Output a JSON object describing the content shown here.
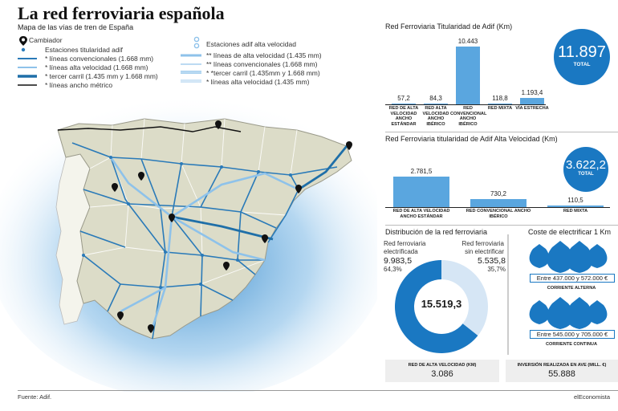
{
  "header": {
    "title": "La red ferroviaria española",
    "subtitle": "Mapa de las vías de tren de España"
  },
  "legend": {
    "left": [
      {
        "label": "Cambiador",
        "color": "#111111",
        "type": "pin"
      },
      {
        "label": "Estaciones titularidad adif",
        "color": "#2a7ab8",
        "type": "dot"
      },
      {
        "label": "* líneas convencionales  (1.668 mm)",
        "color": "#2a7ab8",
        "type": "line-thin"
      },
      {
        "label": "* líneas alta velocidad (1.668 mm)",
        "color": "#8ec2ea",
        "type": "line-thin"
      },
      {
        "label": "* tercer carril (1.435 mm y 1.668 mm)",
        "color": "#1f6fa8",
        "type": "line-thick"
      },
      {
        "label": "* líneas ancho métrico",
        "color": "#111111",
        "type": "line-thin"
      }
    ],
    "right": [
      {
        "label": "Estaciones adif alta velocidad",
        "color": "#8ec2ea",
        "type": "circle"
      },
      {
        "label": "** líneas de alta velocidad (1.435 mm)",
        "color": "#8ec2ea",
        "type": "line-thick"
      },
      {
        "label": "** líneas convencionales (1.668 mm)",
        "color": "#bcdaf2",
        "type": "line-thin"
      },
      {
        "label": "* *tercer carril (1.435mm y 1.668 mm)",
        "color": "#8ec2ea",
        "type": "line-double"
      },
      {
        "label": "* líneas alta velocidad (1.435 mm)",
        "color": "#bcdaf2",
        "type": "line-double"
      }
    ]
  },
  "colors": {
    "accent": "#1a78c2",
    "bar": "#5aa6df",
    "land": "#dcdcc8",
    "light": "#d6e6f5"
  },
  "chart_data": [
    {
      "type": "bar",
      "title": "Red Ferroviaria Titularidad de Adif (Km)",
      "categories": [
        "RED DE ALTA VELOCIDAD ANCHO ESTÁNDAR",
        "RED ALTA VELOCIDAD ANCHO IBÉRICO",
        "RED CONVENCIONAL ANCHO IBÉRICO",
        "RED MIXTA",
        "VÍA ESTRECHA"
      ],
      "values": [
        57.2,
        84.3,
        10443,
        118.8,
        1193.4
      ],
      "value_labels": [
        "57,2",
        "84,3",
        "10.443",
        "118,8",
        "1.193,4"
      ],
      "total": {
        "value": "11.897",
        "label": "TOTAL"
      }
    },
    {
      "type": "bar",
      "title": "Red Ferroviaria titularidad de Adif Alta Velocidad (Km)",
      "categories": [
        "RED DE ALTA VELOCIDAD ANCHO ESTÁNDAR",
        "RED CONVENCIONAL ANCHO IBÉRICO",
        "RED MIXTA"
      ],
      "values": [
        2781.5,
        730.2,
        110.5
      ],
      "value_labels": [
        "2.781,5",
        "730,2",
        "110,5"
      ],
      "total": {
        "value": "3.622,2",
        "label": "TOTAL"
      }
    },
    {
      "type": "pie",
      "title": "Distribución de la red ferroviaria",
      "slices": [
        {
          "name": "Red ferroviaria electrificada",
          "value": 9983.5,
          "value_label": "9.983,5",
          "pct": "64,3%",
          "color": "#1a78c2"
        },
        {
          "name": "Red ferroviaria sin electrificar",
          "value": 5535.8,
          "value_label": "5.535,8",
          "pct": "35,7%",
          "color": "#d6e6f5"
        }
      ],
      "center": "15.519,3"
    }
  ],
  "cost": {
    "title": "Coste de electrificar 1 Km",
    "items": [
      {
        "range": "Entre 437.000 y 572.000 €",
        "caption": "CORRIENTE ALTERNA"
      },
      {
        "range": "Entre 545.000 y 705.000 €",
        "caption": "CORRIENTE CONTINUA"
      }
    ]
  },
  "boxes": [
    {
      "label": "RED DE ALTA VELOCIDAD (KM)",
      "value": "3.086"
    },
    {
      "label": "INVERSIÓN REALIZADA EN AVE (MILL. €)",
      "value": "55.888"
    }
  ],
  "footer": {
    "source": "Fuente: Adif.",
    "brand": "elEconomista"
  }
}
